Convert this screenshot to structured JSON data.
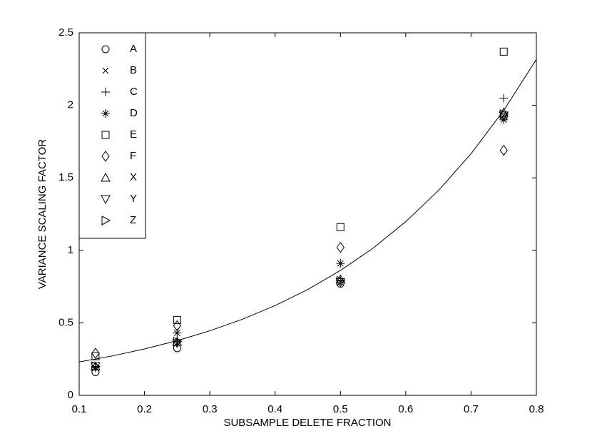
{
  "chart_data": {
    "type": "scatter",
    "xlabel": "SUBSAMPLE DELETE FRACTION",
    "ylabel": "VARIANCE SCALING FACTOR",
    "xlim": [
      0.1,
      0.8
    ],
    "ylim": [
      0,
      2.5
    ],
    "xticks": [
      0.1,
      0.2,
      0.3,
      0.4,
      0.5,
      0.6,
      0.7,
      0.8
    ],
    "yticks": [
      0,
      0.5,
      1,
      1.5,
      2,
      2.5
    ],
    "legend": "upper left",
    "x": [
      0.125,
      0.25,
      0.5,
      0.75
    ],
    "series": [
      {
        "name": "A",
        "marker": "o",
        "color": "#000000",
        "values": [
          0.16,
          0.325,
          0.77,
          1.92
        ]
      },
      {
        "name": "B",
        "marker": "x",
        "color": "#000000",
        "values": [
          0.19,
          0.36,
          0.78,
          1.93
        ]
      },
      {
        "name": "C",
        "marker": "+",
        "color": "#000000",
        "values": [
          0.2,
          0.37,
          0.79,
          2.05
        ]
      },
      {
        "name": "D",
        "marker": "*",
        "color": "#000000",
        "values": [
          0.19,
          0.43,
          0.91,
          1.9
        ]
      },
      {
        "name": "E",
        "marker": "s",
        "color": "#000000",
        "values": [
          0.27,
          0.52,
          1.16,
          2.37
        ]
      },
      {
        "name": "F",
        "marker": "d",
        "color": "#000000",
        "values": [
          0.29,
          0.48,
          1.02,
          1.69
        ]
      },
      {
        "name": "X",
        "marker": "^",
        "color": "#000000",
        "values": [
          0.2,
          0.37,
          0.8,
          1.95
        ]
      },
      {
        "name": "Y",
        "marker": "v",
        "color": "#000000",
        "values": [
          0.2,
          0.36,
          0.78,
          1.93
        ]
      },
      {
        "name": "Z",
        "marker": ">",
        "color": "#000000",
        "values": [
          0.2,
          0.37,
          0.79,
          1.94
        ]
      }
    ],
    "curve": {
      "color": "#000000",
      "x": [
        0.1,
        0.15,
        0.2,
        0.25,
        0.3,
        0.35,
        0.4,
        0.45,
        0.5,
        0.55,
        0.6,
        0.65,
        0.7,
        0.75,
        0.8
      ],
      "y": [
        0.23,
        0.271,
        0.32,
        0.377,
        0.445,
        0.525,
        0.619,
        0.73,
        0.861,
        1.015,
        1.198,
        1.412,
        1.666,
        1.965,
        2.317
      ]
    }
  }
}
